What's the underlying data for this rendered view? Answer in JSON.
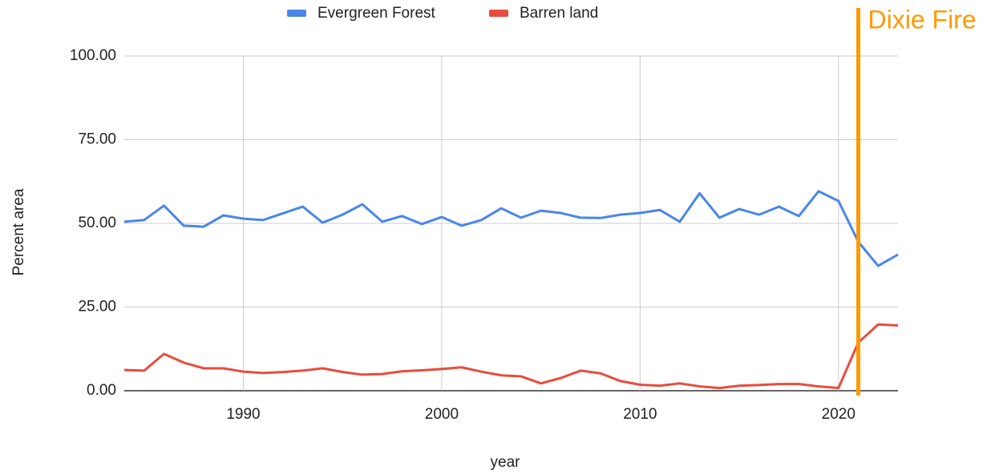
{
  "chart_data": {
    "type": "line",
    "x": [
      1984,
      1985,
      1986,
      1987,
      1988,
      1989,
      1990,
      1991,
      1992,
      1993,
      1994,
      1995,
      1996,
      1997,
      1998,
      1999,
      2000,
      2001,
      2002,
      2003,
      2004,
      2005,
      2006,
      2007,
      2008,
      2009,
      2010,
      2011,
      2012,
      2013,
      2014,
      2015,
      2016,
      2017,
      2018,
      2019,
      2020,
      2021,
      2022,
      2023
    ],
    "series": [
      {
        "name": "Evergreen Forest",
        "color": "#4a86e8",
        "values": [
          50.5,
          51,
          55.3,
          49.3,
          49,
          52.4,
          51.4,
          51,
          53,
          55,
          50.2,
          52.6,
          55.7,
          50.5,
          52.2,
          49.8,
          51.9,
          49.3,
          51,
          54.5,
          51.7,
          53.8,
          53.1,
          51.7,
          51.6,
          52.6,
          53.1,
          54,
          50.5,
          59,
          51.7,
          54.3,
          52.6,
          55,
          52.2,
          59.6,
          56.7,
          44.5,
          37.3,
          40.7
        ]
      },
      {
        "name": "Barren land",
        "color": "#e84c3d",
        "values": [
          6.2,
          6,
          11,
          8.4,
          6.7,
          6.7,
          5.7,
          5.3,
          5.6,
          6,
          6.7,
          5.6,
          4.8,
          5,
          5.8,
          6.1,
          6.5,
          7,
          5.7,
          4.6,
          4.3,
          2.2,
          3.8,
          6,
          5.2,
          2.9,
          1.8,
          1.5,
          2.2,
          1.3,
          0.8,
          1.5,
          1.7,
          2,
          2,
          1.3,
          0.8,
          14.4,
          19.8,
          19.5
        ]
      }
    ],
    "xlabel": "year",
    "ylabel": "Percent area",
    "xlim": [
      1984,
      2023
    ],
    "xticks": [
      1990,
      2000,
      2010,
      2020
    ],
    "ylim": [
      0,
      100
    ],
    "yticks": [
      {
        "value": 0,
        "label": "0.00"
      },
      {
        "value": 25,
        "label": "25.00"
      },
      {
        "value": 50,
        "label": "50.00"
      },
      {
        "value": 75,
        "label": "75.00"
      },
      {
        "value": 100,
        "label": "100.00"
      }
    ],
    "grid": true,
    "legend": "top",
    "annotation": {
      "text": "Dixie Fire",
      "x": 2021,
      "color": "#ff9900"
    }
  }
}
